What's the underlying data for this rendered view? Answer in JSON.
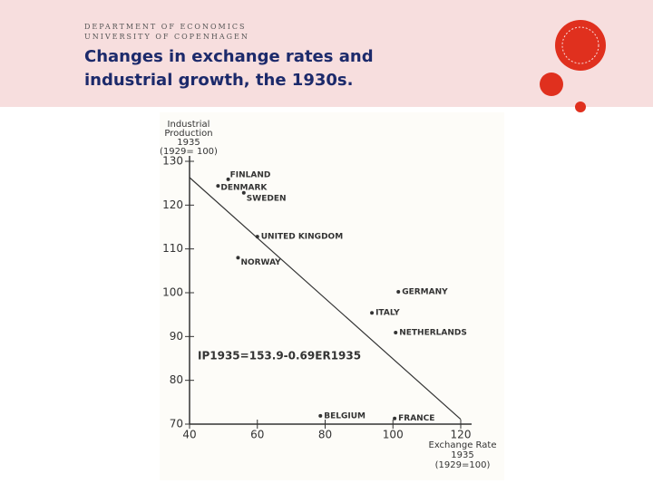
{
  "header": {
    "department": "DEPARTMENT OF ECONOMICS",
    "university": "UNIVERSITY OF COPENHAGEN",
    "title": [
      "Changes in exchange rates and",
      "industrial growth, the 1930s."
    ]
  },
  "chart_data": {
    "type": "scatter",
    "y_label": [
      "Industrial",
      "Production",
      "1935",
      "(1929= 100)"
    ],
    "x_label": [
      "Exchange Rate",
      "1935",
      "(1929=100)"
    ],
    "annotation": "IP1935=153.9-0.69ER1935",
    "labels": [
      "FINLAND",
      "DENMARK",
      "SWEDEN",
      "UNITED KINGDOM",
      "NORWAY",
      "GERMANY",
      "ITALY",
      "NETHERLANDS",
      "BELGIUM",
      "FRANCE"
    ],
    "x": [
      51.4,
      48.4,
      56,
      60,
      54.3,
      101.6,
      93.8,
      100.8,
      78.6,
      100.5
    ],
    "values": [
      125.9,
      124.4,
      122.8,
      112.8,
      108,
      100.2,
      95.4,
      90.9,
      71.9,
      71.3
    ],
    "trend_line": {
      "x": [
        40,
        120
      ],
      "values": [
        126.3,
        71.1
      ]
    },
    "color": "#333333",
    "xlim": [
      40,
      120
    ],
    "ylim": [
      70,
      130
    ],
    "xticks": [
      40,
      60,
      80,
      100,
      120
    ],
    "yticks": [
      70,
      80,
      90,
      100,
      110,
      120,
      130
    ]
  }
}
